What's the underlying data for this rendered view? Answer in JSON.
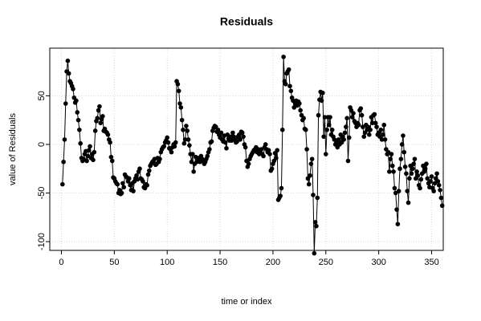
{
  "chart_data": {
    "type": "line",
    "title": "Residuals",
    "x_label": "time or index",
    "y_label": "value of Residuals",
    "x": [
      1,
      2,
      3,
      4,
      5,
      6,
      7,
      8,
      9,
      10,
      11,
      12,
      13,
      14,
      15,
      16,
      17,
      18,
      19,
      20,
      21,
      22,
      23,
      24,
      25,
      26,
      27,
      28,
      29,
      30,
      31,
      32,
      33,
      34,
      35,
      36,
      37,
      38,
      39,
      40,
      41,
      42,
      43,
      44,
      45,
      46,
      47,
      48,
      49,
      50,
      51,
      52,
      53,
      54,
      55,
      56,
      57,
      58,
      59,
      60,
      61,
      62,
      63,
      64,
      65,
      66,
      67,
      68,
      69,
      70,
      71,
      72,
      73,
      74,
      75,
      76,
      77,
      78,
      79,
      80,
      81,
      82,
      83,
      84,
      85,
      86,
      87,
      88,
      89,
      90,
      91,
      92,
      93,
      94,
      95,
      96,
      97,
      98,
      99,
      100,
      101,
      102,
      103,
      104,
      105,
      106,
      107,
      108,
      109,
      110,
      111,
      112,
      113,
      114,
      115,
      116,
      117,
      118,
      119,
      120,
      121,
      122,
      123,
      124,
      125,
      126,
      127,
      128,
      129,
      130,
      131,
      132,
      133,
      134,
      135,
      136,
      137,
      138,
      139,
      140,
      141,
      142,
      143,
      144,
      145,
      146,
      147,
      148,
      149,
      150,
      151,
      152,
      153,
      154,
      155,
      156,
      157,
      158,
      159,
      160,
      161,
      162,
      163,
      164,
      165,
      166,
      167,
      168,
      169,
      170,
      171,
      172,
      173,
      174,
      175,
      176,
      177,
      178,
      179,
      180,
      181,
      182,
      183,
      184,
      185,
      186,
      187,
      188,
      189,
      190,
      191,
      192,
      193,
      194,
      195,
      196,
      197,
      198,
      199,
      200,
      201,
      202,
      203,
      204,
      205,
      206,
      207,
      208,
      209,
      210,
      211,
      212,
      213,
      214,
      215,
      216,
      217,
      218,
      219,
      220,
      221,
      222,
      223,
      224,
      225,
      226,
      227,
      228,
      229,
      230,
      231,
      232,
      233,
      234,
      235,
      236,
      237,
      238,
      239,
      240,
      241,
      242,
      243,
      244,
      245,
      246,
      247,
      248,
      249,
      250,
      251,
      252,
      253,
      254,
      255,
      256,
      257,
      258,
      259,
      260,
      261,
      262,
      263,
      264,
      265,
      266,
      267,
      268,
      269,
      270,
      271,
      272,
      273,
      274,
      275,
      276,
      277,
      278,
      279,
      280,
      281,
      282,
      283,
      284,
      285,
      286,
      287,
      288,
      289,
      290,
      291,
      292,
      293,
      294,
      295,
      296,
      297,
      298,
      299,
      300,
      301,
      302,
      303,
      304,
      305,
      306,
      307,
      308,
      309,
      310,
      311,
      312,
      313,
      314,
      315,
      316,
      317,
      318,
      319,
      320,
      321,
      322,
      323,
      324,
      325,
      326,
      327,
      328,
      329,
      330,
      331,
      332,
      333,
      334,
      335,
      336,
      337,
      338,
      339,
      340,
      341,
      342,
      343,
      344,
      345,
      346,
      347,
      348,
      349,
      350,
      351,
      352,
      353,
      354,
      355,
      356,
      357,
      358,
      359,
      360
    ],
    "series": [
      {
        "color": "#000000",
        "values": [
          -41,
          -18,
          5,
          42,
          75,
          86,
          73,
          65,
          63,
          60,
          57,
          48,
          43,
          45,
          33,
          25,
          15,
          1,
          -14,
          -17,
          -15,
          -10,
          -7,
          -17,
          -12,
          -6,
          -2,
          -14,
          -10,
          -16,
          -8,
          14,
          24,
          27,
          35,
          39,
          22,
          26,
          29,
          14,
          16,
          13,
          12,
          10,
          5,
          2,
          -13,
          -17,
          -34,
          -35,
          -38,
          -40,
          -41,
          -50,
          -47,
          -51,
          -50,
          -40,
          -44,
          -31,
          -33,
          -34,
          -38,
          -35,
          -42,
          -47,
          -40,
          -48,
          -38,
          -35,
          -32,
          -36,
          -28,
          -25,
          -35,
          -36,
          -38,
          -44,
          -45,
          -41,
          -42,
          -31,
          -27,
          -22,
          -20,
          -18,
          -17,
          -15,
          -21,
          -20,
          -14,
          -18,
          -15,
          -8,
          -5,
          -3,
          -2,
          2,
          4,
          7,
          2,
          -4,
          -5,
          -8,
          -3,
          0,
          -2,
          2,
          65,
          62,
          55,
          42,
          38,
          25,
          15,
          1,
          5,
          19,
          14,
          5,
          -1,
          -10,
          -18,
          -10,
          -28,
          -20,
          -13,
          -18,
          -14,
          -16,
          -18,
          -12,
          -15,
          -17,
          -20,
          -18,
          -15,
          -12,
          -8,
          -5,
          2,
          3,
          14,
          17,
          19,
          18,
          13,
          15,
          10,
          7,
          12,
          5,
          3,
          9,
          2,
          -4,
          10,
          6,
          4,
          8,
          4,
          12,
          8,
          5,
          2,
          3,
          8,
          10,
          5,
          13,
          12,
          8,
          0,
          -3,
          -17,
          -23,
          -20,
          -15,
          -12,
          -10,
          -8,
          -6,
          -5,
          -3,
          -8,
          -5,
          -10,
          -7,
          -5,
          -10,
          -12,
          -3,
          0,
          -5,
          -8,
          -6,
          -10,
          -27,
          -25,
          -20,
          -17,
          -9,
          -14,
          -6,
          -57,
          -55,
          -53,
          -45,
          15,
          90,
          65,
          62,
          73,
          75,
          77,
          60,
          55,
          48,
          45,
          38,
          42,
          45,
          40,
          44,
          42,
          35,
          30,
          25,
          27,
          16,
          15,
          -5,
          -35,
          -41,
          -32,
          -20,
          -15,
          -52,
          -112,
          -80,
          -84,
          -55,
          30,
          46,
          54,
          45,
          53,
          8,
          28,
          -10,
          15,
          28,
          20,
          28,
          10,
          15,
          8,
          5,
          0,
          2,
          -3,
          5,
          0,
          10,
          2,
          8,
          5,
          12,
          18,
          27,
          -17,
          7,
          38,
          35,
          28,
          32,
          24,
          22,
          18,
          22,
          20,
          35,
          37,
          30,
          18,
          8,
          12,
          20,
          15,
          18,
          10,
          15,
          28,
          22,
          30,
          31,
          22,
          18,
          10,
          12,
          8,
          15,
          5,
          10,
          20,
          5,
          -5,
          -10,
          -8,
          -28,
          -15,
          -10,
          -22,
          -28,
          -45,
          -50,
          -67,
          -82,
          -48,
          -25,
          -15,
          0,
          9,
          -8,
          -23,
          -30,
          -48,
          -60,
          -35,
          -22,
          -30,
          -25,
          -20,
          -15,
          -35,
          -28,
          -32,
          -42,
          -45,
          -36,
          -30,
          -22,
          -28,
          -25,
          -20,
          -35,
          -40,
          -44,
          -38,
          -33,
          -45,
          -48,
          -40,
          -35,
          -30,
          -38,
          -42,
          -47,
          -55,
          -63
        ]
      }
    ],
    "xlim": [
      -11,
      361
    ],
    "ylim": [
      -109,
      99
    ],
    "xticks": [
      0,
      50,
      100,
      150,
      200,
      250,
      300,
      350
    ],
    "yticks": [
      -100,
      -50,
      0,
      50
    ],
    "grid": true
  }
}
